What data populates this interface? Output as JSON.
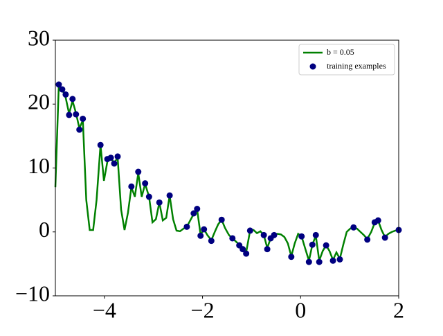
{
  "chart_data": {
    "type": "line",
    "legend": "upper right",
    "xlim": [
      -5,
      2
    ],
    "ylim": [
      -10,
      30
    ],
    "xticks": [
      {
        "value": -4,
        "label": "−4"
      },
      {
        "value": -2,
        "label": "−2"
      },
      0,
      2
    ],
    "yticks": [
      {
        "value": -10,
        "label": "−10"
      },
      0,
      10,
      20,
      30
    ],
    "series": [
      {
        "name": "b = 0.05",
        "type": "line",
        "color": "#008000",
        "x": [
          -5,
          -4.93,
          -4.86,
          -4.79,
          -4.72,
          -4.65,
          -4.58,
          -4.51,
          -4.44,
          -4.37,
          -4.3,
          -4.23,
          -4.16,
          -4.08,
          -4.01,
          -3.94,
          -3.87,
          -3.8,
          -3.73,
          -3.66,
          -3.59,
          -3.52,
          -3.45,
          -3.38,
          -3.31,
          -3.24,
          -3.17,
          -3.09,
          -3.02,
          -2.95,
          -2.88,
          -2.81,
          -2.74,
          -2.67,
          -2.6,
          -2.53,
          -2.46,
          -2.39,
          -2.32,
          -2.25,
          -2.18,
          -2.11,
          -2.04,
          -1.97,
          -1.9,
          -1.82,
          -1.75,
          -1.68,
          -1.61,
          -1.54,
          -1.46,
          -1.39,
          -1.32,
          -1.25,
          -1.18,
          -1.11,
          -1.03,
          -0.96,
          -0.89,
          -0.82,
          -0.75,
          -0.68,
          -0.61,
          -0.54,
          -0.47,
          -0.4,
          -0.33,
          -0.26,
          -0.19,
          -0.12,
          -0.05,
          0.02,
          0.09,
          0.17,
          0.24,
          0.31,
          0.38,
          0.45,
          0.52,
          0.59,
          0.66,
          0.73,
          0.8,
          0.87,
          0.94,
          1.01,
          1.08,
          1.15,
          1.22,
          1.29,
          1.36,
          1.44,
          1.51,
          1.58,
          1.65,
          1.72,
          1.79,
          1.86,
          1.93,
          2.0
        ],
        "values": [
          7,
          23,
          22.3,
          21,
          18.5,
          20.5,
          18.6,
          16.2,
          17.5,
          5,
          0.3,
          0.3,
          5,
          13.6,
          8,
          11,
          11.5,
          10.8,
          11.6,
          3.5,
          0.3,
          3,
          7,
          5.5,
          9.2,
          5.5,
          7.5,
          5.5,
          1.5,
          2,
          4.6,
          1.8,
          2.2,
          5.7,
          2,
          0.2,
          0.1,
          0.5,
          0.8,
          1.8,
          2.8,
          3.5,
          -0.4,
          0.4,
          -0.5,
          -1.3,
          0,
          1.2,
          1.9,
          0.6,
          -0.5,
          -1,
          -1.5,
          -2,
          -2.6,
          -3.2,
          0.2,
          0.3,
          -0.2,
          0.1,
          -0.5,
          -2.5,
          -1,
          -0.4,
          -0.3,
          -0.4,
          -0.8,
          -1.8,
          -3.8,
          -1.8,
          -0.3,
          -0.7,
          -2.5,
          -4.5,
          -2,
          -0.6,
          -4.5,
          -3,
          -2.1,
          -3,
          -4.4,
          -3.2,
          -4.2,
          -2,
          0,
          0.5,
          0.7,
          0.5,
          0,
          -0.5,
          -1.1,
          0,
          1.4,
          1.8,
          0.3,
          -0.8,
          -0.3,
          0,
          0.2,
          0.3
        ]
      },
      {
        "name": "training examples",
        "type": "scatter",
        "color": "#000080",
        "x": [
          -4.93,
          -4.86,
          -4.79,
          -4.72,
          -4.65,
          -4.58,
          -4.51,
          -4.44,
          -4.08,
          -3.94,
          -3.87,
          -3.8,
          -3.73,
          -3.45,
          -3.31,
          -3.17,
          -3.09,
          -2.88,
          -2.67,
          -2.32,
          -2.18,
          -2.11,
          -2.04,
          -1.97,
          -1.82,
          -1.61,
          -1.39,
          -1.25,
          -1.18,
          -1.11,
          -1.03,
          -0.75,
          -0.68,
          -0.61,
          -0.54,
          -0.19,
          0.02,
          0.17,
          0.24,
          0.31,
          0.38,
          0.52,
          0.66,
          0.8,
          1.08,
          1.36,
          1.51,
          1.58,
          1.72,
          2.0
        ],
        "values": [
          23.06,
          22.3,
          21.5,
          18.3,
          20.8,
          18.4,
          16.0,
          17.7,
          13.6,
          11.4,
          11.6,
          10.7,
          11.8,
          7.1,
          9.4,
          7.6,
          5.5,
          4.6,
          5.7,
          0.8,
          2.9,
          3.6,
          -0.6,
          0.4,
          -1.4,
          1.9,
          -1.0,
          -2.1,
          -2.7,
          -3.4,
          0.2,
          -0.5,
          -2.7,
          -1.0,
          -0.5,
          -3.9,
          -0.7,
          -4.7,
          -2.0,
          -0.5,
          -4.7,
          -2.1,
          -4.5,
          -4.3,
          0.7,
          -1.2,
          1.5,
          1.8,
          -0.9,
          0.3
        ]
      }
    ]
  }
}
